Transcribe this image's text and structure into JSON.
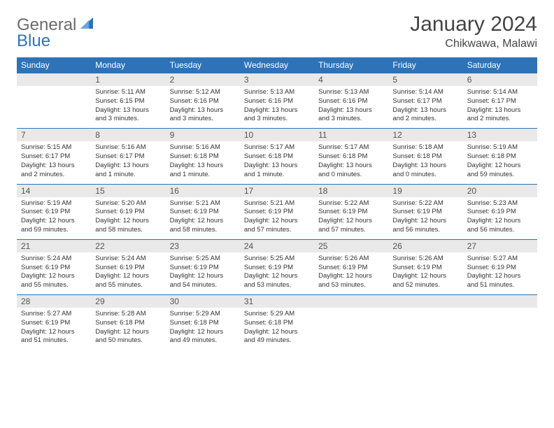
{
  "brand": {
    "part1": "General",
    "part2": "Blue"
  },
  "title": "January 2024",
  "location": "Chikwawa, Malawi",
  "colors": {
    "header_bg": "#2e73b8",
    "header_text": "#ffffff",
    "daynum_bg": "#e9e9e9",
    "rule": "#2e73b8",
    "body_text": "#333333",
    "page_bg": "#ffffff"
  },
  "typography": {
    "title_fontsize_pt": 22,
    "location_fontsize_pt": 12,
    "weekday_fontsize_pt": 9,
    "cell_fontsize_pt": 7
  },
  "layout": {
    "columns": 7,
    "rows": 5,
    "start_weekday": "Sunday",
    "first_day_column_index": 1
  },
  "weekdays": [
    "Sunday",
    "Monday",
    "Tuesday",
    "Wednesday",
    "Thursday",
    "Friday",
    "Saturday"
  ],
  "days": [
    {
      "n": "1",
      "sunrise": "5:11 AM",
      "sunset": "6:15 PM",
      "daylight": "13 hours and 3 minutes."
    },
    {
      "n": "2",
      "sunrise": "5:12 AM",
      "sunset": "6:16 PM",
      "daylight": "13 hours and 3 minutes."
    },
    {
      "n": "3",
      "sunrise": "5:13 AM",
      "sunset": "6:16 PM",
      "daylight": "13 hours and 3 minutes."
    },
    {
      "n": "4",
      "sunrise": "5:13 AM",
      "sunset": "6:16 PM",
      "daylight": "13 hours and 3 minutes."
    },
    {
      "n": "5",
      "sunrise": "5:14 AM",
      "sunset": "6:17 PM",
      "daylight": "13 hours and 2 minutes."
    },
    {
      "n": "6",
      "sunrise": "5:14 AM",
      "sunset": "6:17 PM",
      "daylight": "13 hours and 2 minutes."
    },
    {
      "n": "7",
      "sunrise": "5:15 AM",
      "sunset": "6:17 PM",
      "daylight": "13 hours and 2 minutes."
    },
    {
      "n": "8",
      "sunrise": "5:16 AM",
      "sunset": "6:17 PM",
      "daylight": "13 hours and 1 minute."
    },
    {
      "n": "9",
      "sunrise": "5:16 AM",
      "sunset": "6:18 PM",
      "daylight": "13 hours and 1 minute."
    },
    {
      "n": "10",
      "sunrise": "5:17 AM",
      "sunset": "6:18 PM",
      "daylight": "13 hours and 1 minute."
    },
    {
      "n": "11",
      "sunrise": "5:17 AM",
      "sunset": "6:18 PM",
      "daylight": "13 hours and 0 minutes."
    },
    {
      "n": "12",
      "sunrise": "5:18 AM",
      "sunset": "6:18 PM",
      "daylight": "13 hours and 0 minutes."
    },
    {
      "n": "13",
      "sunrise": "5:19 AM",
      "sunset": "6:18 PM",
      "daylight": "12 hours and 59 minutes."
    },
    {
      "n": "14",
      "sunrise": "5:19 AM",
      "sunset": "6:19 PM",
      "daylight": "12 hours and 59 minutes."
    },
    {
      "n": "15",
      "sunrise": "5:20 AM",
      "sunset": "6:19 PM",
      "daylight": "12 hours and 58 minutes."
    },
    {
      "n": "16",
      "sunrise": "5:21 AM",
      "sunset": "6:19 PM",
      "daylight": "12 hours and 58 minutes."
    },
    {
      "n": "17",
      "sunrise": "5:21 AM",
      "sunset": "6:19 PM",
      "daylight": "12 hours and 57 minutes."
    },
    {
      "n": "18",
      "sunrise": "5:22 AM",
      "sunset": "6:19 PM",
      "daylight": "12 hours and 57 minutes."
    },
    {
      "n": "19",
      "sunrise": "5:22 AM",
      "sunset": "6:19 PM",
      "daylight": "12 hours and 56 minutes."
    },
    {
      "n": "20",
      "sunrise": "5:23 AM",
      "sunset": "6:19 PM",
      "daylight": "12 hours and 56 minutes."
    },
    {
      "n": "21",
      "sunrise": "5:24 AM",
      "sunset": "6:19 PM",
      "daylight": "12 hours and 55 minutes."
    },
    {
      "n": "22",
      "sunrise": "5:24 AM",
      "sunset": "6:19 PM",
      "daylight": "12 hours and 55 minutes."
    },
    {
      "n": "23",
      "sunrise": "5:25 AM",
      "sunset": "6:19 PM",
      "daylight": "12 hours and 54 minutes."
    },
    {
      "n": "24",
      "sunrise": "5:25 AM",
      "sunset": "6:19 PM",
      "daylight": "12 hours and 53 minutes."
    },
    {
      "n": "25",
      "sunrise": "5:26 AM",
      "sunset": "6:19 PM",
      "daylight": "12 hours and 53 minutes."
    },
    {
      "n": "26",
      "sunrise": "5:26 AM",
      "sunset": "6:19 PM",
      "daylight": "12 hours and 52 minutes."
    },
    {
      "n": "27",
      "sunrise": "5:27 AM",
      "sunset": "6:19 PM",
      "daylight": "12 hours and 51 minutes."
    },
    {
      "n": "28",
      "sunrise": "5:27 AM",
      "sunset": "6:19 PM",
      "daylight": "12 hours and 51 minutes."
    },
    {
      "n": "29",
      "sunrise": "5:28 AM",
      "sunset": "6:18 PM",
      "daylight": "12 hours and 50 minutes."
    },
    {
      "n": "30",
      "sunrise": "5:29 AM",
      "sunset": "6:18 PM",
      "daylight": "12 hours and 49 minutes."
    },
    {
      "n": "31",
      "sunrise": "5:29 AM",
      "sunset": "6:18 PM",
      "daylight": "12 hours and 49 minutes."
    }
  ],
  "labels": {
    "sunrise": "Sunrise:",
    "sunset": "Sunset:",
    "daylight": "Daylight:"
  }
}
